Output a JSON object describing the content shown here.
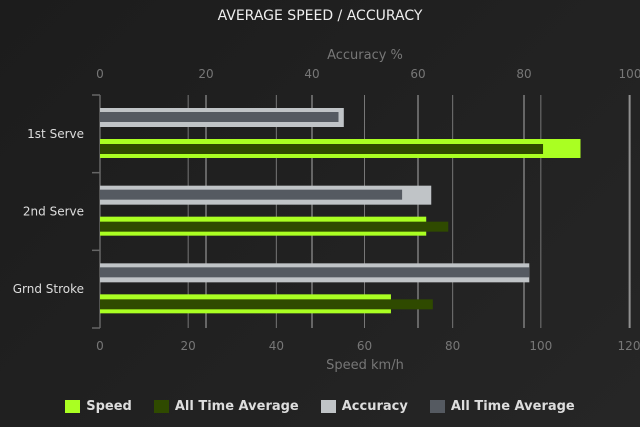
{
  "chart_data": {
    "type": "bar",
    "orientation": "horizontal",
    "title": "AVERAGE SPEED / ACCURACY",
    "categories": [
      "1st Serve",
      "2nd Serve",
      "Grnd Stroke"
    ],
    "x_bottom": {
      "label": "Speed km/h",
      "range": [
        0,
        120
      ],
      "ticks": [
        0,
        20,
        40,
        60,
        80,
        100,
        120
      ]
    },
    "x_top": {
      "label": "Accuracy %",
      "range": [
        0,
        100
      ],
      "ticks": [
        0,
        20,
        40,
        60,
        80,
        100
      ]
    },
    "series": [
      {
        "name": "Speed",
        "axis": "bottom",
        "color": "#aaff22",
        "values": [
          109,
          74,
          66
        ]
      },
      {
        "name": "All Time Average",
        "axis": "bottom",
        "color": "#2f4a00",
        "values": [
          100.5,
          79,
          75.5
        ]
      },
      {
        "name": "Accuracy",
        "axis": "top",
        "color": "#c0c4c7",
        "values": [
          46,
          62.5,
          81
        ]
      },
      {
        "name": "All Time Average",
        "axis": "top",
        "color": "#555a61",
        "values": [
          45,
          57,
          81
        ]
      }
    ],
    "grid": true,
    "legend": "bottom"
  }
}
